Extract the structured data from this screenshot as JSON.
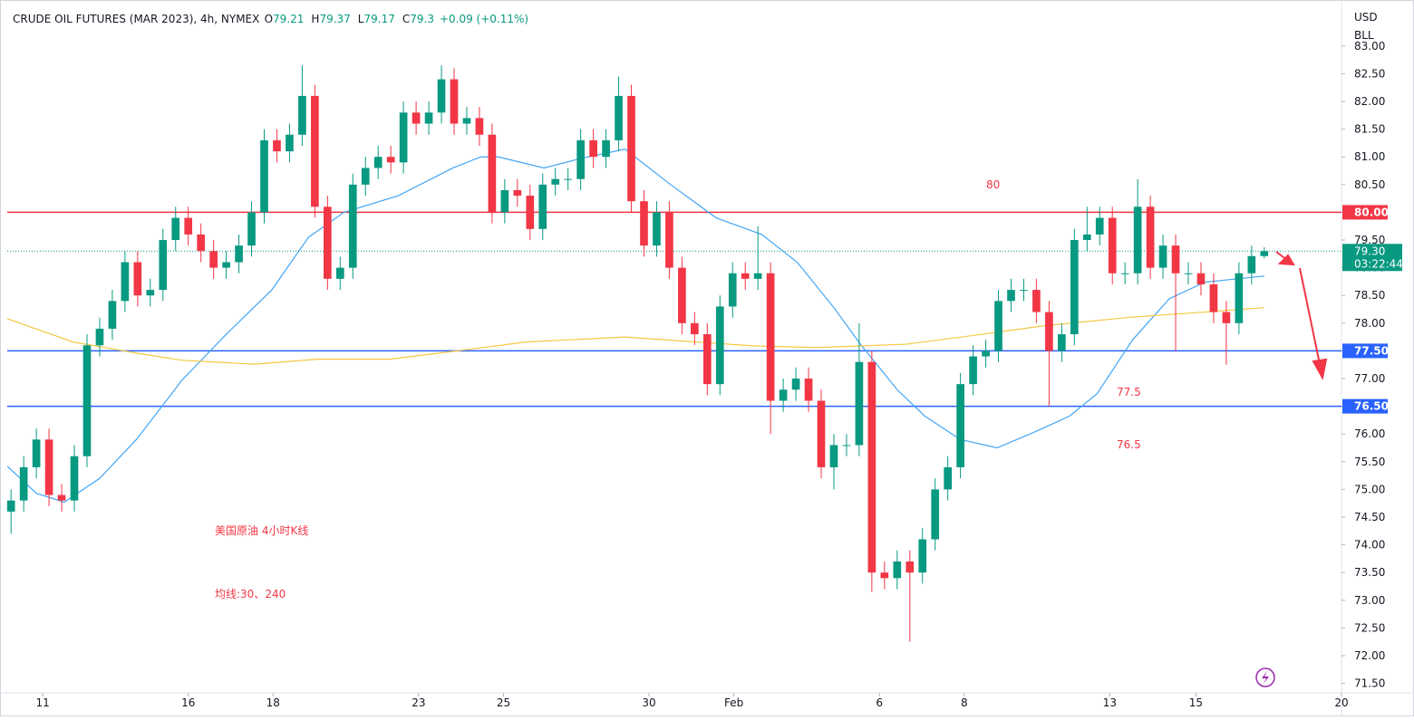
{
  "chart_data": {
    "type": "candlestick",
    "title": "CRUDE OIL FUTURES (MAR 2023), 4h, NYMEX",
    "ohlc_legend": [
      {
        "label": "O",
        "value": 79.21
      },
      {
        "label": "H",
        "value": 79.37
      },
      {
        "label": "L",
        "value": 79.17
      },
      {
        "label": "C",
        "value": 79.3
      }
    ],
    "change": "+0.09 (+0.11%)",
    "currency": "USD",
    "unit": "BLL",
    "up_color": "#089981",
    "down_color": "#f23645",
    "open": [
      74.6,
      74.8,
      75.4,
      75.9,
      74.9,
      74.8,
      75.6,
      77.6,
      77.9,
      78.4,
      79.1,
      78.5,
      78.6,
      79.5,
      79.9,
      79.6,
      79.3,
      79.0,
      79.1,
      79.4,
      80.0,
      81.3,
      81.1,
      81.4,
      82.1,
      80.1,
      78.8,
      79.0,
      80.5,
      80.8,
      81.0,
      80.9,
      81.8,
      81.6,
      81.8,
      82.4,
      81.6,
      81.7,
      81.4,
      80.0,
      80.4,
      80.3,
      79.7,
      80.5,
      80.6,
      80.6,
      81.3,
      81.0,
      81.3,
      82.1,
      80.2,
      79.4,
      80.0,
      79.0,
      78.0,
      77.8,
      76.9,
      78.3,
      78.9,
      78.8,
      78.9,
      76.6,
      76.8,
      77.0,
      76.6,
      75.4,
      75.8,
      75.8,
      77.3,
      73.5,
      73.4,
      73.7,
      73.5,
      74.1,
      75.0,
      75.4,
      76.9,
      77.4,
      77.5,
      78.4,
      78.6,
      78.6,
      78.2,
      77.5,
      77.8,
      79.5,
      79.6,
      79.9,
      78.9,
      78.9,
      80.1,
      79.0,
      79.4,
      78.9,
      78.9,
      78.7,
      78.2,
      78.0,
      78.9,
      79.21
    ],
    "high": [
      75.0,
      75.6,
      76.1,
      76.1,
      75.1,
      75.8,
      77.8,
      78.1,
      78.6,
      79.3,
      79.3,
      78.8,
      79.7,
      80.1,
      80.1,
      79.8,
      79.5,
      79.3,
      79.6,
      80.2,
      81.5,
      81.5,
      81.6,
      82.65,
      82.3,
      80.3,
      79.2,
      80.7,
      81.0,
      81.2,
      81.2,
      82.0,
      82.0,
      82.0,
      82.65,
      82.6,
      81.9,
      81.9,
      81.6,
      80.6,
      80.6,
      80.5,
      80.7,
      80.8,
      80.8,
      81.5,
      81.5,
      81.5,
      82.45,
      82.3,
      80.4,
      80.2,
      80.2,
      79.2,
      78.2,
      78.0,
      78.5,
      79.1,
      79.1,
      79.75,
      79.1,
      77.0,
      77.2,
      77.2,
      76.8,
      76.0,
      76.0,
      78.0,
      77.5,
      73.7,
      73.9,
      73.9,
      74.3,
      75.2,
      75.6,
      77.1,
      77.6,
      77.7,
      78.6,
      78.8,
      78.8,
      78.8,
      78.4,
      78.0,
      79.7,
      80.1,
      80.1,
      80.1,
      79.1,
      80.6,
      80.3,
      79.6,
      79.6,
      79.1,
      79.1,
      78.9,
      78.4,
      79.1,
      79.4,
      79.37
    ],
    "low": [
      74.2,
      74.6,
      75.2,
      74.7,
      74.6,
      74.6,
      75.4,
      77.4,
      77.7,
      78.2,
      78.3,
      78.3,
      78.4,
      79.3,
      79.4,
      79.1,
      78.8,
      78.8,
      78.9,
      79.2,
      79.8,
      80.9,
      80.9,
      81.2,
      79.9,
      78.6,
      78.6,
      78.8,
      80.3,
      80.6,
      80.7,
      80.7,
      81.4,
      81.4,
      81.6,
      81.4,
      81.4,
      81.2,
      79.8,
      79.8,
      80.1,
      79.5,
      79.5,
      80.3,
      80.4,
      80.4,
      80.8,
      80.8,
      81.1,
      80.0,
      79.2,
      79.2,
      78.8,
      77.8,
      77.6,
      76.7,
      76.7,
      78.1,
      78.6,
      78.6,
      76.0,
      76.4,
      76.6,
      76.4,
      75.2,
      75.0,
      75.6,
      75.6,
      73.15,
      73.2,
      73.2,
      72.25,
      73.3,
      73.9,
      74.8,
      75.2,
      76.7,
      77.2,
      77.3,
      78.2,
      78.4,
      78.0,
      76.5,
      77.3,
      77.6,
      79.3,
      79.4,
      78.7,
      78.7,
      78.7,
      78.8,
      78.8,
      77.5,
      78.7,
      78.5,
      78.0,
      77.25,
      77.8,
      78.7,
      79.17
    ],
    "close": [
      74.8,
      75.4,
      75.9,
      74.9,
      74.8,
      75.6,
      77.6,
      77.9,
      78.4,
      79.1,
      78.5,
      78.6,
      79.5,
      79.9,
      79.6,
      79.3,
      79.0,
      79.1,
      79.4,
      80.0,
      81.3,
      81.1,
      81.4,
      82.1,
      80.1,
      78.8,
      79.0,
      80.5,
      80.8,
      81.0,
      80.9,
      81.8,
      81.6,
      81.8,
      82.4,
      81.6,
      81.7,
      81.4,
      80.0,
      80.4,
      80.3,
      79.7,
      80.5,
      80.6,
      80.6,
      81.3,
      81.0,
      81.3,
      82.1,
      80.2,
      79.4,
      80.0,
      79.0,
      78.0,
      77.8,
      76.9,
      78.3,
      78.9,
      78.8,
      78.9,
      76.6,
      76.8,
      77.0,
      76.6,
      75.4,
      75.8,
      75.8,
      77.3,
      73.5,
      73.4,
      73.7,
      73.5,
      74.1,
      75.0,
      75.4,
      76.9,
      77.4,
      77.5,
      78.4,
      78.6,
      78.6,
      78.2,
      77.5,
      77.8,
      79.5,
      79.6,
      79.9,
      78.9,
      78.9,
      80.1,
      79.0,
      79.4,
      78.9,
      78.9,
      78.7,
      78.2,
      78.0,
      78.9,
      79.21,
      79.3
    ],
    "ma_lines": [
      {
        "color": "#42a5f5",
        "x": [
          -0.3,
          2.0,
          4.2,
          7.0,
          9.9,
          13.5,
          17.0,
          20.6,
          23.5,
          26.3,
          30.6,
          34.9,
          37.1,
          38.5,
          42.1,
          45.0,
          48.5,
          52.1,
          55.7,
          59.3,
          62.1,
          65.0,
          67.1,
          70.0,
          72.2,
          75.0,
          77.9,
          80.7,
          83.6,
          85.8,
          88.6,
          91.5,
          94.3,
          99.0
        ],
        "values": [
          75.42,
          74.93,
          74.77,
          75.2,
          75.9,
          76.97,
          77.8,
          78.6,
          79.55,
          80.0,
          80.3,
          80.8,
          81.0,
          81.0,
          80.8,
          80.97,
          81.14,
          80.5,
          79.9,
          79.6,
          79.1,
          78.28,
          77.62,
          76.8,
          76.32,
          75.9,
          75.75,
          76.02,
          76.32,
          76.73,
          77.7,
          78.44,
          78.74,
          78.85
        ]
      },
      {
        "color": "#f5c842",
        "x": [
          -0.3,
          4.9,
          9.9,
          13.5,
          19.2,
          24.2,
          29.9,
          34.9,
          40.7,
          48.5,
          53.5,
          58.6,
          63.6,
          70.7,
          76.4,
          81.5,
          88.6,
          94.3,
          99.0
        ],
        "values": [
          78.08,
          77.66,
          77.46,
          77.33,
          77.26,
          77.35,
          77.35,
          77.49,
          77.66,
          77.75,
          77.67,
          77.59,
          77.56,
          77.62,
          77.79,
          77.95,
          78.11,
          78.2,
          78.28
        ]
      }
    ],
    "hlines": [
      {
        "value": 80,
        "label": "80.00",
        "color": "#f23645"
      },
      {
        "value": 77.5,
        "label": "77.50",
        "color": "#2962ff"
      },
      {
        "value": 76.5,
        "label": "76.50",
        "color": "#2962ff"
      }
    ],
    "last_price": {
      "value": 79.3,
      "label": "79.30",
      "countdown": "03:22:44"
    },
    "annotations": [
      "80",
      "77.5",
      "76.5",
      "美国原油 4小时K线",
      "均线:30、240"
    ],
    "xlim": [
      -0.3,
      105.1
    ],
    "xticks": [
      {
        "value": 2.5,
        "label": "11"
      },
      {
        "value": 14.0,
        "label": "16"
      },
      {
        "value": 20.7,
        "label": "18"
      },
      {
        "value": 32.2,
        "label": "23"
      },
      {
        "value": 38.9,
        "label": "25"
      },
      {
        "value": 50.4,
        "label": "30"
      },
      {
        "value": 57.1,
        "label": "Feb"
      },
      {
        "value": 68.6,
        "label": "6"
      },
      {
        "value": 75.3,
        "label": "8"
      },
      {
        "value": 86.8,
        "label": "13"
      },
      {
        "value": 93.6,
        "label": "15"
      },
      {
        "value": 105.1,
        "label": "20"
      }
    ],
    "ylim": [
      71.33,
      83.7
    ],
    "yticks": [
      {
        "value": 71.5,
        "label": "71.50"
      },
      {
        "value": 72,
        "label": "72.00"
      },
      {
        "value": 72.5,
        "label": "72.50"
      },
      {
        "value": 73,
        "label": "73.00"
      },
      {
        "value": 73.5,
        "label": "73.50"
      },
      {
        "value": 74,
        "label": "74.00"
      },
      {
        "value": 74.5,
        "label": "74.50"
      },
      {
        "value": 75,
        "label": "75.00"
      },
      {
        "value": 75.5,
        "label": "75.50"
      },
      {
        "value": 76,
        "label": "76.00"
      },
      {
        "value": 76.5,
        "label": "76.50"
      },
      {
        "value": 77,
        "label": "77.00"
      },
      {
        "value": 77.5,
        "label": "77.50"
      },
      {
        "value": 78,
        "label": "78.00"
      },
      {
        "value": 78.5,
        "label": "78.50"
      },
      {
        "value": 79,
        "label": "79.00"
      },
      {
        "value": 79.5,
        "label": "79.50"
      },
      {
        "value": 80,
        "label": "80.00"
      },
      {
        "value": 80.5,
        "label": "80.50"
      },
      {
        "value": 81,
        "label": "81.00"
      },
      {
        "value": 81.5,
        "label": "81.50"
      },
      {
        "value": 82,
        "label": "82.00"
      },
      {
        "value": 82.5,
        "label": "82.50"
      },
      {
        "value": 83,
        "label": "83.00"
      }
    ]
  }
}
